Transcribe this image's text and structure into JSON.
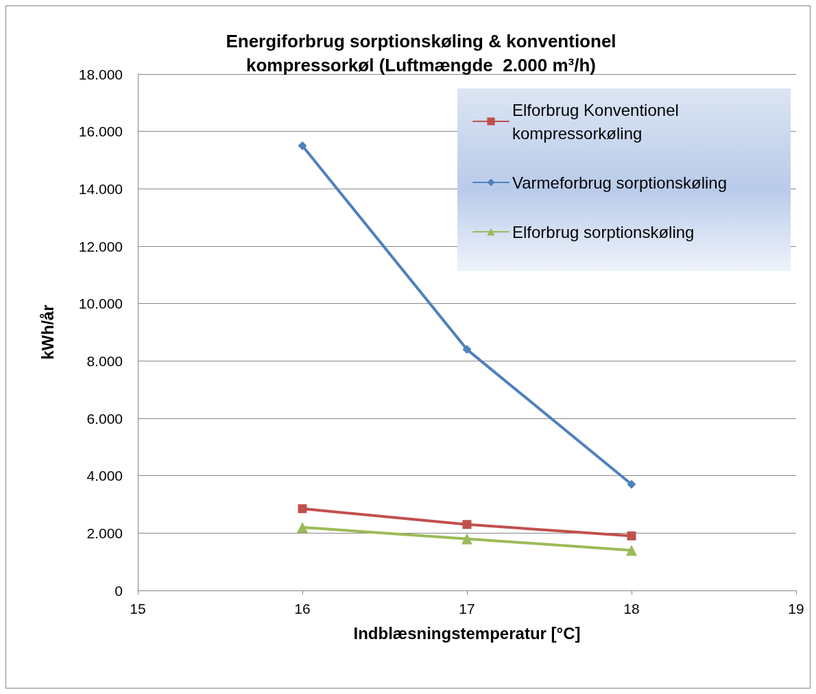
{
  "chart_data": {
    "type": "line",
    "title": "Energiforbrug sorptionskøling & konventionel\nkompressorkøl (Luftmængde  2.000 m³/h)",
    "xlabel": "Indblæsningstemperatur [°C]",
    "ylabel": "kWh/år",
    "x": [
      16,
      17,
      18
    ],
    "series": [
      {
        "name": "Elforbrug Konventionel kompressorkøling",
        "color": "#c0504d",
        "marker": "square",
        "values": [
          2850,
          2300,
          1900
        ]
      },
      {
        "name": "Varmeforbrug sorptionskøling",
        "color": "#4f81bd",
        "marker": "diamond",
        "values": [
          15500,
          8400,
          3700
        ]
      },
      {
        "name": "Elforbrug sorptionskøling",
        "color": "#9bbb59",
        "marker": "triangle",
        "values": [
          2200,
          1800,
          1400
        ]
      }
    ],
    "xlim": [
      15,
      19
    ],
    "xticks": [
      15,
      16,
      17,
      18,
      19
    ],
    "ylim": [
      0,
      18000
    ],
    "yticks": [
      0,
      {
        "value": 2000,
        "label": "2.000"
      },
      {
        "value": 4000,
        "label": "4.000"
      },
      {
        "value": 6000,
        "label": "6.000"
      },
      {
        "value": 8000,
        "label": "8.000"
      },
      {
        "value": 10000,
        "label": "10.000"
      },
      {
        "value": 12000,
        "label": "12.000"
      },
      {
        "value": 14000,
        "label": "14.000"
      },
      {
        "value": 16000,
        "label": "16.000"
      },
      {
        "value": 18000,
        "label": "18.000"
      }
    ],
    "grid": "y",
    "legend": "top right",
    "line_style": "solid"
  }
}
